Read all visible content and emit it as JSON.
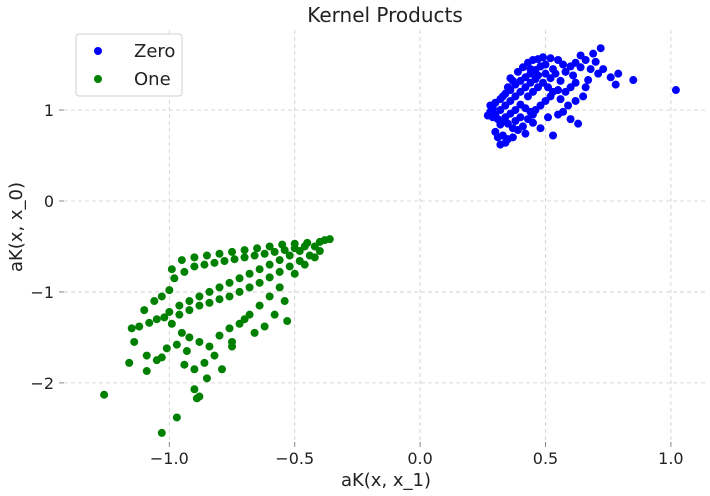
{
  "chart_data": {
    "type": "scatter",
    "title": "Kernel Products",
    "xlabel": "aK(x, x_1)",
    "ylabel": "aK(x, x_0)",
    "xlim": [
      -1.42,
      1.14
    ],
    "ylim": [
      -2.65,
      1.88
    ],
    "xticks": [
      -1.0,
      -0.5,
      0.0,
      0.5,
      1.0
    ],
    "xtick_labels": [
      "−1.0",
      "−0.5",
      "0.0",
      "0.5",
      "1.0"
    ],
    "yticks": [
      -2,
      -1,
      0,
      1
    ],
    "ytick_labels": [
      "−2",
      "−1",
      "0",
      "1"
    ],
    "grid": true,
    "legend_position": "top-left",
    "series": [
      {
        "name": "Zero",
        "color": "#0000ff",
        "points": [
          [
            0.3,
            0.95
          ],
          [
            0.32,
            1.0
          ],
          [
            0.34,
            1.05
          ],
          [
            0.36,
            1.1
          ],
          [
            0.38,
            1.15
          ],
          [
            0.4,
            1.2
          ],
          [
            0.42,
            1.25
          ],
          [
            0.44,
            1.3
          ],
          [
            0.31,
            0.9
          ],
          [
            0.33,
            0.88
          ],
          [
            0.35,
            0.85
          ],
          [
            0.37,
            0.8
          ],
          [
            0.39,
            0.78
          ],
          [
            0.41,
            0.82
          ],
          [
            0.43,
            0.9
          ],
          [
            0.45,
            0.95
          ],
          [
            0.29,
            1.02
          ],
          [
            0.28,
            0.98
          ],
          [
            0.27,
            0.94
          ],
          [
            0.3,
            1.08
          ],
          [
            0.32,
            1.12
          ],
          [
            0.34,
            1.18
          ],
          [
            0.36,
            1.22
          ],
          [
            0.38,
            1.28
          ],
          [
            0.4,
            1.32
          ],
          [
            0.42,
            1.36
          ],
          [
            0.44,
            1.4
          ],
          [
            0.46,
            1.44
          ],
          [
            0.48,
            1.48
          ],
          [
            0.5,
            1.5
          ],
          [
            0.47,
            1.38
          ],
          [
            0.49,
            1.3
          ],
          [
            0.51,
            1.25
          ],
          [
            0.53,
            1.2
          ],
          [
            0.5,
            1.1
          ],
          [
            0.48,
            1.05
          ],
          [
            0.46,
            1.0
          ],
          [
            0.44,
            0.98
          ],
          [
            0.42,
            1.02
          ],
          [
            0.4,
            1.06
          ],
          [
            0.38,
            1.0
          ],
          [
            0.36,
            0.96
          ],
          [
            0.34,
            0.92
          ],
          [
            0.32,
            0.84
          ],
          [
            0.33,
            0.72
          ],
          [
            0.35,
            0.68
          ],
          [
            0.32,
            0.62
          ],
          [
            0.34,
            0.64
          ],
          [
            0.37,
            0.7
          ],
          [
            0.3,
            0.76
          ],
          [
            0.31,
            0.7
          ],
          [
            0.42,
            0.74
          ],
          [
            0.45,
            0.86
          ],
          [
            0.48,
            0.8
          ],
          [
            0.36,
            1.35
          ],
          [
            0.39,
            1.42
          ],
          [
            0.41,
            1.47
          ],
          [
            0.43,
            1.52
          ],
          [
            0.45,
            1.55
          ],
          [
            0.47,
            1.56
          ],
          [
            0.49,
            1.58
          ],
          [
            0.52,
            1.57
          ],
          [
            0.55,
            1.55
          ],
          [
            0.57,
            1.5
          ],
          [
            0.54,
            1.4
          ],
          [
            0.56,
            1.32
          ],
          [
            0.55,
            1.22
          ],
          [
            0.52,
            1.15
          ],
          [
            0.56,
            1.12
          ],
          [
            0.58,
            1.2
          ],
          [
            0.6,
            1.25
          ],
          [
            0.62,
            1.3
          ],
          [
            0.58,
            1.42
          ],
          [
            0.6,
            1.48
          ],
          [
            0.62,
            1.52
          ],
          [
            0.64,
            1.47
          ],
          [
            0.61,
            1.38
          ],
          [
            0.59,
            1.05
          ],
          [
            0.57,
            0.98
          ],
          [
            0.55,
            0.95
          ],
          [
            0.6,
            0.9
          ],
          [
            0.63,
            0.85
          ],
          [
            0.62,
            1.1
          ],
          [
            0.65,
            1.15
          ],
          [
            0.66,
            1.25
          ],
          [
            0.67,
            1.33
          ],
          [
            0.68,
            1.45
          ],
          [
            0.7,
            1.53
          ],
          [
            0.69,
            1.62
          ],
          [
            0.72,
            1.68
          ],
          [
            0.71,
            1.4
          ],
          [
            0.73,
            1.45
          ],
          [
            0.76,
            1.36
          ],
          [
            0.78,
            1.28
          ],
          [
            0.79,
            1.4
          ],
          [
            0.85,
            1.33
          ],
          [
            1.02,
            1.22
          ],
          [
            0.66,
            1.55
          ],
          [
            0.64,
            1.6
          ],
          [
            0.53,
            1.45
          ],
          [
            0.35,
            1.25
          ],
          [
            0.37,
            1.32
          ],
          [
            0.33,
            1.15
          ],
          [
            0.28,
            1.05
          ],
          [
            0.29,
            0.92
          ],
          [
            0.43,
            1.15
          ],
          [
            0.45,
            1.2
          ],
          [
            0.47,
            1.25
          ],
          [
            0.4,
            0.92
          ],
          [
            0.38,
            0.88
          ],
          [
            0.51,
            0.92
          ],
          [
            0.53,
            0.72
          ],
          [
            0.44,
            1.45
          ],
          [
            0.46,
            1.34
          ],
          [
            0.5,
            1.4
          ],
          [
            0.52,
            1.35
          ]
        ]
      },
      {
        "name": "One",
        "color": "#008000",
        "points": [
          [
            -0.95,
            -0.65
          ],
          [
            -0.9,
            -0.62
          ],
          [
            -0.85,
            -0.6
          ],
          [
            -0.8,
            -0.58
          ],
          [
            -0.75,
            -0.56
          ],
          [
            -0.7,
            -0.54
          ],
          [
            -0.65,
            -0.52
          ],
          [
            -0.6,
            -0.5
          ],
          [
            -0.55,
            -0.48
          ],
          [
            -0.5,
            -0.47
          ],
          [
            -0.45,
            -0.46
          ],
          [
            -0.4,
            -0.45
          ],
          [
            -0.38,
            -0.43
          ],
          [
            -0.42,
            -0.5
          ],
          [
            -0.48,
            -0.55
          ],
          [
            -0.52,
            -0.6
          ],
          [
            -0.56,
            -0.65
          ],
          [
            -0.6,
            -0.7
          ],
          [
            -0.64,
            -0.75
          ],
          [
            -0.68,
            -0.8
          ],
          [
            -0.72,
            -0.85
          ],
          [
            -0.76,
            -0.9
          ],
          [
            -0.8,
            -0.95
          ],
          [
            -0.84,
            -1.0
          ],
          [
            -0.88,
            -1.05
          ],
          [
            -0.92,
            -1.1
          ],
          [
            -0.96,
            -1.15
          ],
          [
            -1.0,
            -0.98
          ],
          [
            -0.98,
            -0.85
          ],
          [
            -0.94,
            -0.78
          ],
          [
            -0.9,
            -0.72
          ],
          [
            -0.86,
            -0.7
          ],
          [
            -0.82,
            -0.68
          ],
          [
            -0.78,
            -0.66
          ],
          [
            -0.74,
            -0.64
          ],
          [
            -0.7,
            -0.62
          ],
          [
            -0.66,
            -0.6
          ],
          [
            -0.62,
            -0.58
          ],
          [
            -0.58,
            -0.56
          ],
          [
            -0.54,
            -0.54
          ],
          [
            -0.5,
            -0.52
          ],
          [
            -0.46,
            -0.5
          ],
          [
            -0.44,
            -0.6
          ],
          [
            -0.48,
            -0.66
          ],
          [
            -0.52,
            -0.72
          ],
          [
            -0.56,
            -0.78
          ],
          [
            -0.6,
            -0.84
          ],
          [
            -0.64,
            -0.9
          ],
          [
            -0.68,
            -0.95
          ],
          [
            -0.72,
            -1.0
          ],
          [
            -0.76,
            -1.05
          ],
          [
            -0.8,
            -1.08
          ],
          [
            -0.84,
            -1.12
          ],
          [
            -0.88,
            -1.15
          ],
          [
            -0.92,
            -1.2
          ],
          [
            -0.96,
            -1.25
          ],
          [
            -1.0,
            -1.22
          ],
          [
            -1.02,
            -1.28
          ],
          [
            -1.05,
            -1.3
          ],
          [
            -1.08,
            -1.34
          ],
          [
            -1.12,
            -1.38
          ],
          [
            -1.15,
            -1.4
          ],
          [
            -1.1,
            -1.2
          ],
          [
            -1.06,
            -1.1
          ],
          [
            -1.03,
            -1.05
          ],
          [
            -0.99,
            -1.35
          ],
          [
            -0.95,
            -1.45
          ],
          [
            -0.92,
            -1.5
          ],
          [
            -0.88,
            -1.55
          ],
          [
            -0.84,
            -1.6
          ],
          [
            -0.8,
            -1.48
          ],
          [
            -0.76,
            -1.4
          ],
          [
            -0.72,
            -1.35
          ],
          [
            -0.68,
            -1.25
          ],
          [
            -0.64,
            -1.15
          ],
          [
            -0.6,
            -1.05
          ],
          [
            -0.56,
            -0.95
          ],
          [
            -0.53,
            -1.32
          ],
          [
            -0.7,
            -1.3
          ],
          [
            -0.75,
            -1.55
          ],
          [
            -0.82,
            -1.7
          ],
          [
            -0.86,
            -1.78
          ],
          [
            -0.9,
            -1.85
          ],
          [
            -0.93,
            -1.65
          ],
          [
            -0.97,
            -1.58
          ],
          [
            -1.01,
            -1.62
          ],
          [
            -1.05,
            -1.75
          ],
          [
            -1.09,
            -1.7
          ],
          [
            -1.14,
            -1.55
          ],
          [
            -1.16,
            -1.78
          ],
          [
            -1.09,
            -1.87
          ],
          [
            -1.03,
            -1.72
          ],
          [
            -0.94,
            -1.8
          ],
          [
            -0.85,
            -1.95
          ],
          [
            -0.9,
            -2.07
          ],
          [
            -0.88,
            -2.15
          ],
          [
            -0.89,
            -2.17
          ],
          [
            -0.97,
            -2.38
          ],
          [
            -1.03,
            -2.55
          ],
          [
            -1.26,
            -2.13
          ],
          [
            -0.79,
            -1.85
          ],
          [
            -0.75,
            -1.6
          ],
          [
            -0.66,
            -1.45
          ],
          [
            -0.62,
            -1.38
          ],
          [
            -0.58,
            -1.25
          ],
          [
            -0.54,
            -1.1
          ],
          [
            -0.5,
            -0.8
          ],
          [
            -0.46,
            -0.7
          ],
          [
            -0.42,
            -0.62
          ],
          [
            -0.4,
            -0.55
          ],
          [
            -0.36,
            -0.42
          ],
          [
            -0.99,
            -0.75
          ]
        ]
      }
    ]
  }
}
